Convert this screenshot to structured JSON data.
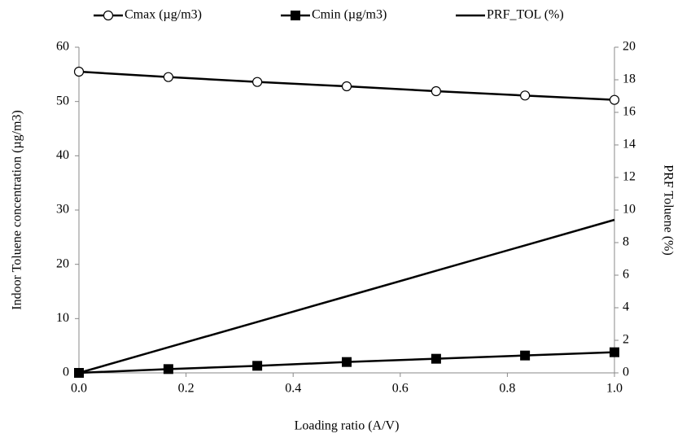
{
  "chart_data": {
    "type": "line",
    "xlabel": "Loading ratio (A/V)",
    "ylabel": "Indoor Toluene concentration (µg/m3)",
    "y2label": "PRF Toluene (%)",
    "x": [
      0,
      0.167,
      0.333,
      0.5,
      0.667,
      0.833,
      1.0
    ],
    "series": [
      {
        "name": "Cmax (µg/m3)",
        "color": "#000000",
        "marker": "circle-open",
        "values": [
          55.5,
          54.5,
          53.6,
          52.8,
          51.9,
          51.1,
          50.3
        ]
      },
      {
        "name": "Cmin (µg/m3)",
        "color": "#000000",
        "marker": "square",
        "values": [
          0,
          0.7,
          1.3,
          2.0,
          2.6,
          3.2,
          3.8
        ]
      },
      {
        "name": "PRF_TOL (%)",
        "color": "#000000",
        "marker": "none",
        "axis": "y2",
        "values": [
          0,
          1.57,
          3.13,
          4.7,
          6.27,
          7.83,
          9.4
        ]
      }
    ],
    "xlim": [
      0,
      1
    ],
    "xticks": [
      {
        "value": 0,
        "label": "0.0"
      },
      0.2,
      0.4,
      0.6,
      0.8,
      {
        "value": 1,
        "label": "1.0"
      }
    ],
    "ylim": [
      0,
      60
    ],
    "yticks": [
      0,
      10,
      20,
      30,
      40,
      50,
      60
    ],
    "y2lim": [
      0,
      20
    ],
    "y2ticks": [
      0,
      2,
      4,
      6,
      8,
      10,
      12,
      14,
      16,
      18,
      20
    ],
    "grid": false,
    "legend": "top"
  }
}
